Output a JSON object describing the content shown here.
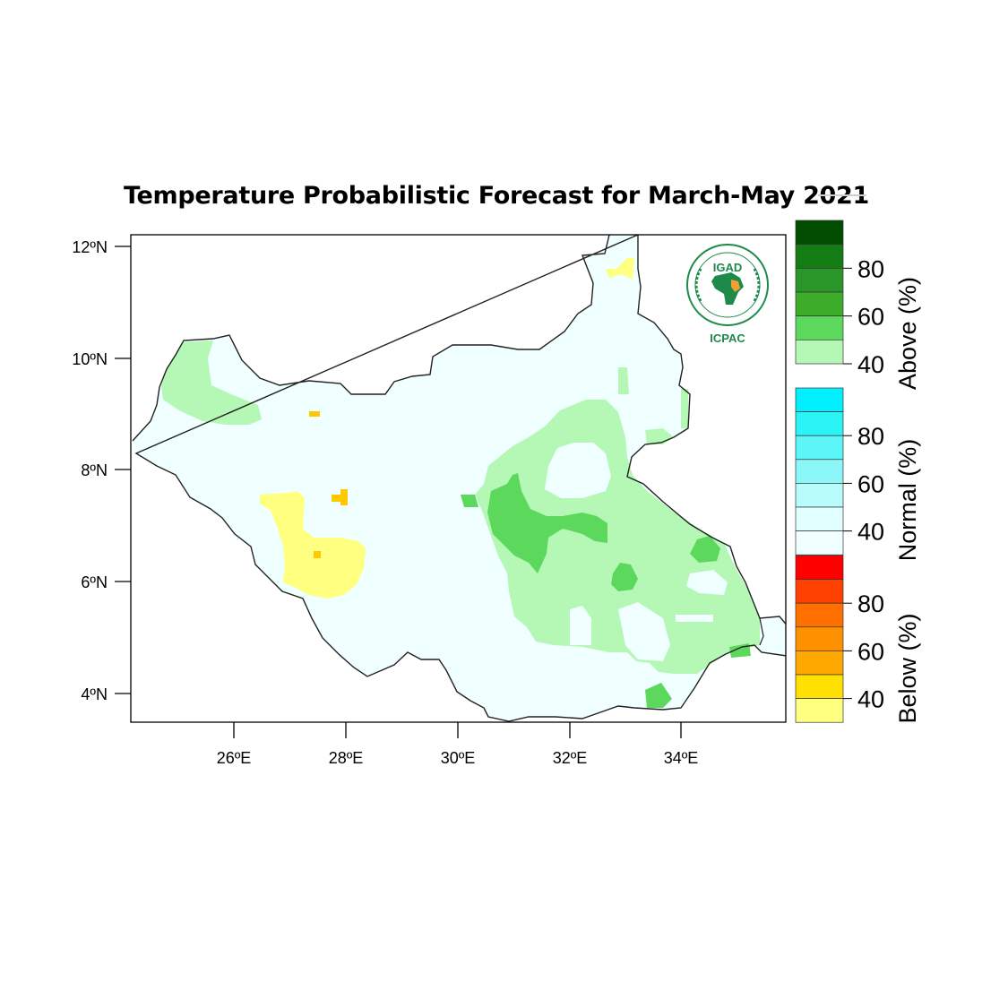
{
  "title": "Temperature Probabilistic Forecast for March-May 2021",
  "map": {
    "region": "South Sudan",
    "lat_ticks": [
      "12ºN",
      "10ºN",
      "8ºN",
      "6ºN",
      "4ºN"
    ],
    "lon_ticks": [
      "26ºE",
      "28ºE",
      "30ºE",
      "32ºE",
      "34ºE"
    ],
    "lat_range": [
      3.5,
      12.2
    ],
    "lon_range": [
      24.2,
      35.9
    ],
    "background_color": "#f0ffff"
  },
  "logo": {
    "name": "IGAD",
    "subtitle": "ICPAC",
    "ring_text": "INTERGOVERNMENTAL AUTHORITY ON DEVELOPMENT"
  },
  "legend": {
    "groups": [
      {
        "label": "Above (%)",
        "ticks": [
          "80",
          "60",
          "40"
        ],
        "colors": [
          "#004d00",
          "#137d13",
          "#2a962a",
          "#3cac2a",
          "#5cd85c",
          "#b5f7b5"
        ]
      },
      {
        "label": "Normal (%)",
        "ticks": [
          "80",
          "60",
          "40"
        ],
        "colors": [
          "#00f0ff",
          "#2cf4f6",
          "#5cf6f8",
          "#8cf7f8",
          "#b7fbfa",
          "#e0fffe",
          "#f0ffff"
        ]
      },
      {
        "label": "Below (%)",
        "ticks": [
          "80",
          "60",
          "40"
        ],
        "colors": [
          "#ff0000",
          "#ff4000",
          "#ff7000",
          "#ff9000",
          "#ffa800",
          "#ffe000",
          "#ffff80"
        ]
      }
    ]
  }
}
